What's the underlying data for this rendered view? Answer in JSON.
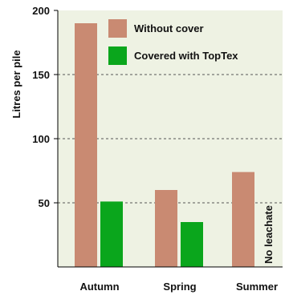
{
  "chart_data": {
    "type": "bar",
    "title": "",
    "xlabel": "",
    "ylabel": "Litres per pile",
    "ylim": [
      0,
      200
    ],
    "yticks": [
      50,
      100,
      150,
      200
    ],
    "grid": "dashed horizontal",
    "legend_position": "top-right",
    "categories": [
      "Autumn",
      "Spring",
      "Summer"
    ],
    "series": [
      {
        "name": "Without cover",
        "color": "#c98a72",
        "values": [
          190,
          60,
          74
        ]
      },
      {
        "name": "Covered with TopTex",
        "color": "#0aa61c",
        "values": [
          51,
          35,
          null
        ]
      }
    ],
    "annotations": [
      {
        "text": "No leachate",
        "category": "Summer",
        "series": "Covered with TopTex"
      }
    ],
    "background_color": "#eef2e3"
  }
}
